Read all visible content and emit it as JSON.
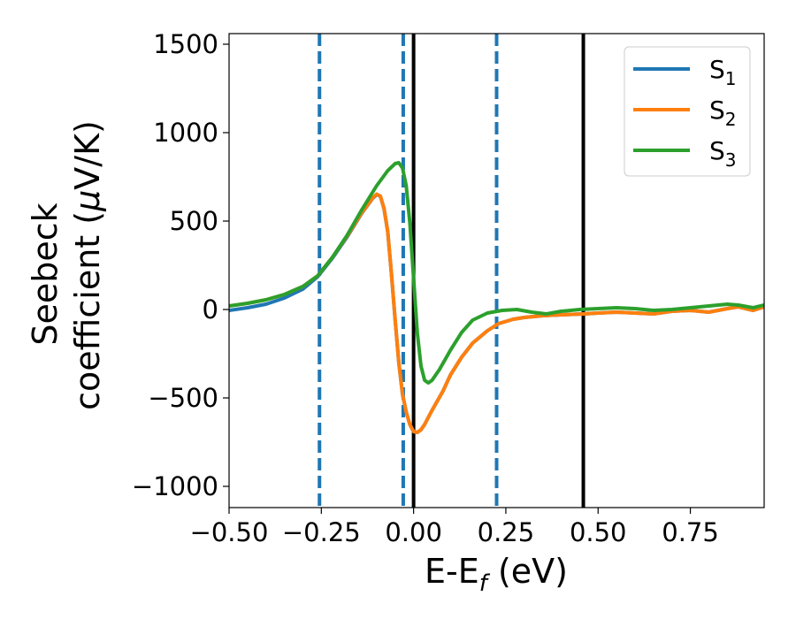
{
  "chart_data": {
    "type": "line",
    "xlabel": "E-E",
    "xlabel_sub": "f",
    "xlabel_unit": " (eV)",
    "ylabel_line1": "Seebeck",
    "ylabel_line2": "coefficient  (",
    "ylabel_mu": "μ",
    "ylabel_unit": "V/K)",
    "xlim": [
      -0.5,
      0.95
    ],
    "ylim": [
      -1120,
      1560
    ],
    "xticks": [
      -0.5,
      -0.25,
      0.0,
      0.25,
      0.5,
      0.75
    ],
    "xtick_labels": [
      "−0.50",
      "−0.25",
      "0.00",
      "0.25",
      "0.50",
      "0.75"
    ],
    "yticks": [
      -1000,
      -500,
      0,
      500,
      1000,
      1500
    ],
    "ytick_labels": [
      "−1000",
      "−500",
      "0",
      "500",
      "1000",
      "1500"
    ],
    "legend_position": "top-right",
    "series": [
      {
        "name": "S",
        "sub": "1",
        "color": "#1f77b4",
        "x": [
          -0.5,
          -0.45,
          -0.4,
          -0.35,
          -0.3,
          -0.26,
          -0.22,
          -0.18,
          -0.14,
          -0.11,
          -0.1,
          -0.09,
          -0.08,
          -0.07,
          -0.06,
          -0.05,
          -0.04,
          -0.03,
          -0.02,
          -0.01,
          0.0,
          0.01,
          0.02,
          0.03,
          0.05,
          0.08,
          0.1,
          0.13,
          0.16,
          0.2,
          0.23,
          0.27,
          0.3,
          0.35,
          0.4,
          0.46,
          0.5,
          0.55,
          0.6,
          0.65,
          0.7,
          0.75,
          0.8,
          0.85,
          0.88,
          0.92,
          0.95
        ],
        "y": [
          -5,
          10,
          30,
          65,
          115,
          185,
          290,
          410,
          545,
          630,
          650,
          640,
          570,
          440,
          200,
          -60,
          -300,
          -480,
          -580,
          -650,
          -690,
          -695,
          -680,
          -650,
          -570,
          -460,
          -370,
          -270,
          -190,
          -120,
          -80,
          -55,
          -45,
          -35,
          -30,
          -25,
          -20,
          -15,
          -20,
          -25,
          -10,
          -5,
          -15,
          5,
          15,
          -5,
          15
        ]
      },
      {
        "name": "S",
        "sub": "2",
        "color": "#ff7f0e",
        "x": [
          -0.5,
          -0.45,
          -0.4,
          -0.35,
          -0.3,
          -0.26,
          -0.22,
          -0.18,
          -0.14,
          -0.11,
          -0.1,
          -0.09,
          -0.08,
          -0.07,
          -0.06,
          -0.05,
          -0.04,
          -0.03,
          -0.02,
          -0.01,
          0.0,
          0.01,
          0.02,
          0.03,
          0.05,
          0.08,
          0.1,
          0.13,
          0.16,
          0.2,
          0.23,
          0.27,
          0.3,
          0.35,
          0.4,
          0.46,
          0.5,
          0.55,
          0.6,
          0.65,
          0.7,
          0.75,
          0.8,
          0.85,
          0.88,
          0.92,
          0.95
        ],
        "y": [
          20,
          35,
          55,
          85,
          130,
          190,
          295,
          415,
          548,
          632,
          652,
          641,
          572,
          442,
          202,
          -58,
          -298,
          -478,
          -580,
          -650,
          -690,
          -695,
          -680,
          -650,
          -570,
          -460,
          -370,
          -270,
          -190,
          -120,
          -80,
          -55,
          -45,
          -35,
          -30,
          -25,
          -20,
          -15,
          -20,
          -25,
          -10,
          -5,
          -15,
          5,
          15,
          -5,
          15
        ]
      },
      {
        "name": "S",
        "sub": "3",
        "color": "#2ca02c",
        "x": [
          -0.5,
          -0.45,
          -0.4,
          -0.35,
          -0.3,
          -0.26,
          -0.22,
          -0.18,
          -0.14,
          -0.1,
          -0.07,
          -0.05,
          -0.04,
          -0.03,
          -0.02,
          -0.01,
          0.0,
          0.01,
          0.02,
          0.03,
          0.04,
          0.05,
          0.07,
          0.1,
          0.13,
          0.16,
          0.2,
          0.24,
          0.28,
          0.32,
          0.36,
          0.4,
          0.45,
          0.5,
          0.55,
          0.6,
          0.65,
          0.7,
          0.75,
          0.8,
          0.85,
          0.88,
          0.92,
          0.95
        ],
        "y": [
          20,
          35,
          55,
          85,
          130,
          190,
          295,
          420,
          565,
          700,
          785,
          825,
          830,
          800,
          700,
          490,
          180,
          -130,
          -320,
          -400,
          -415,
          -400,
          -340,
          -230,
          -130,
          -60,
          -20,
          -5,
          0,
          -15,
          -25,
          -10,
          0,
          5,
          10,
          5,
          -5,
          0,
          10,
          20,
          30,
          25,
          10,
          25
        ]
      }
    ],
    "vlines": [
      {
        "x": -0.255,
        "style": "dashed",
        "color": "#1f77b4"
      },
      {
        "x": -0.028,
        "style": "dashed",
        "color": "#1f77b4"
      },
      {
        "x": 0.225,
        "style": "dashed",
        "color": "#1f77b4"
      },
      {
        "x": 0.0,
        "style": "solid",
        "color": "#000000"
      },
      {
        "x": 0.46,
        "style": "solid",
        "color": "#000000"
      }
    ]
  }
}
